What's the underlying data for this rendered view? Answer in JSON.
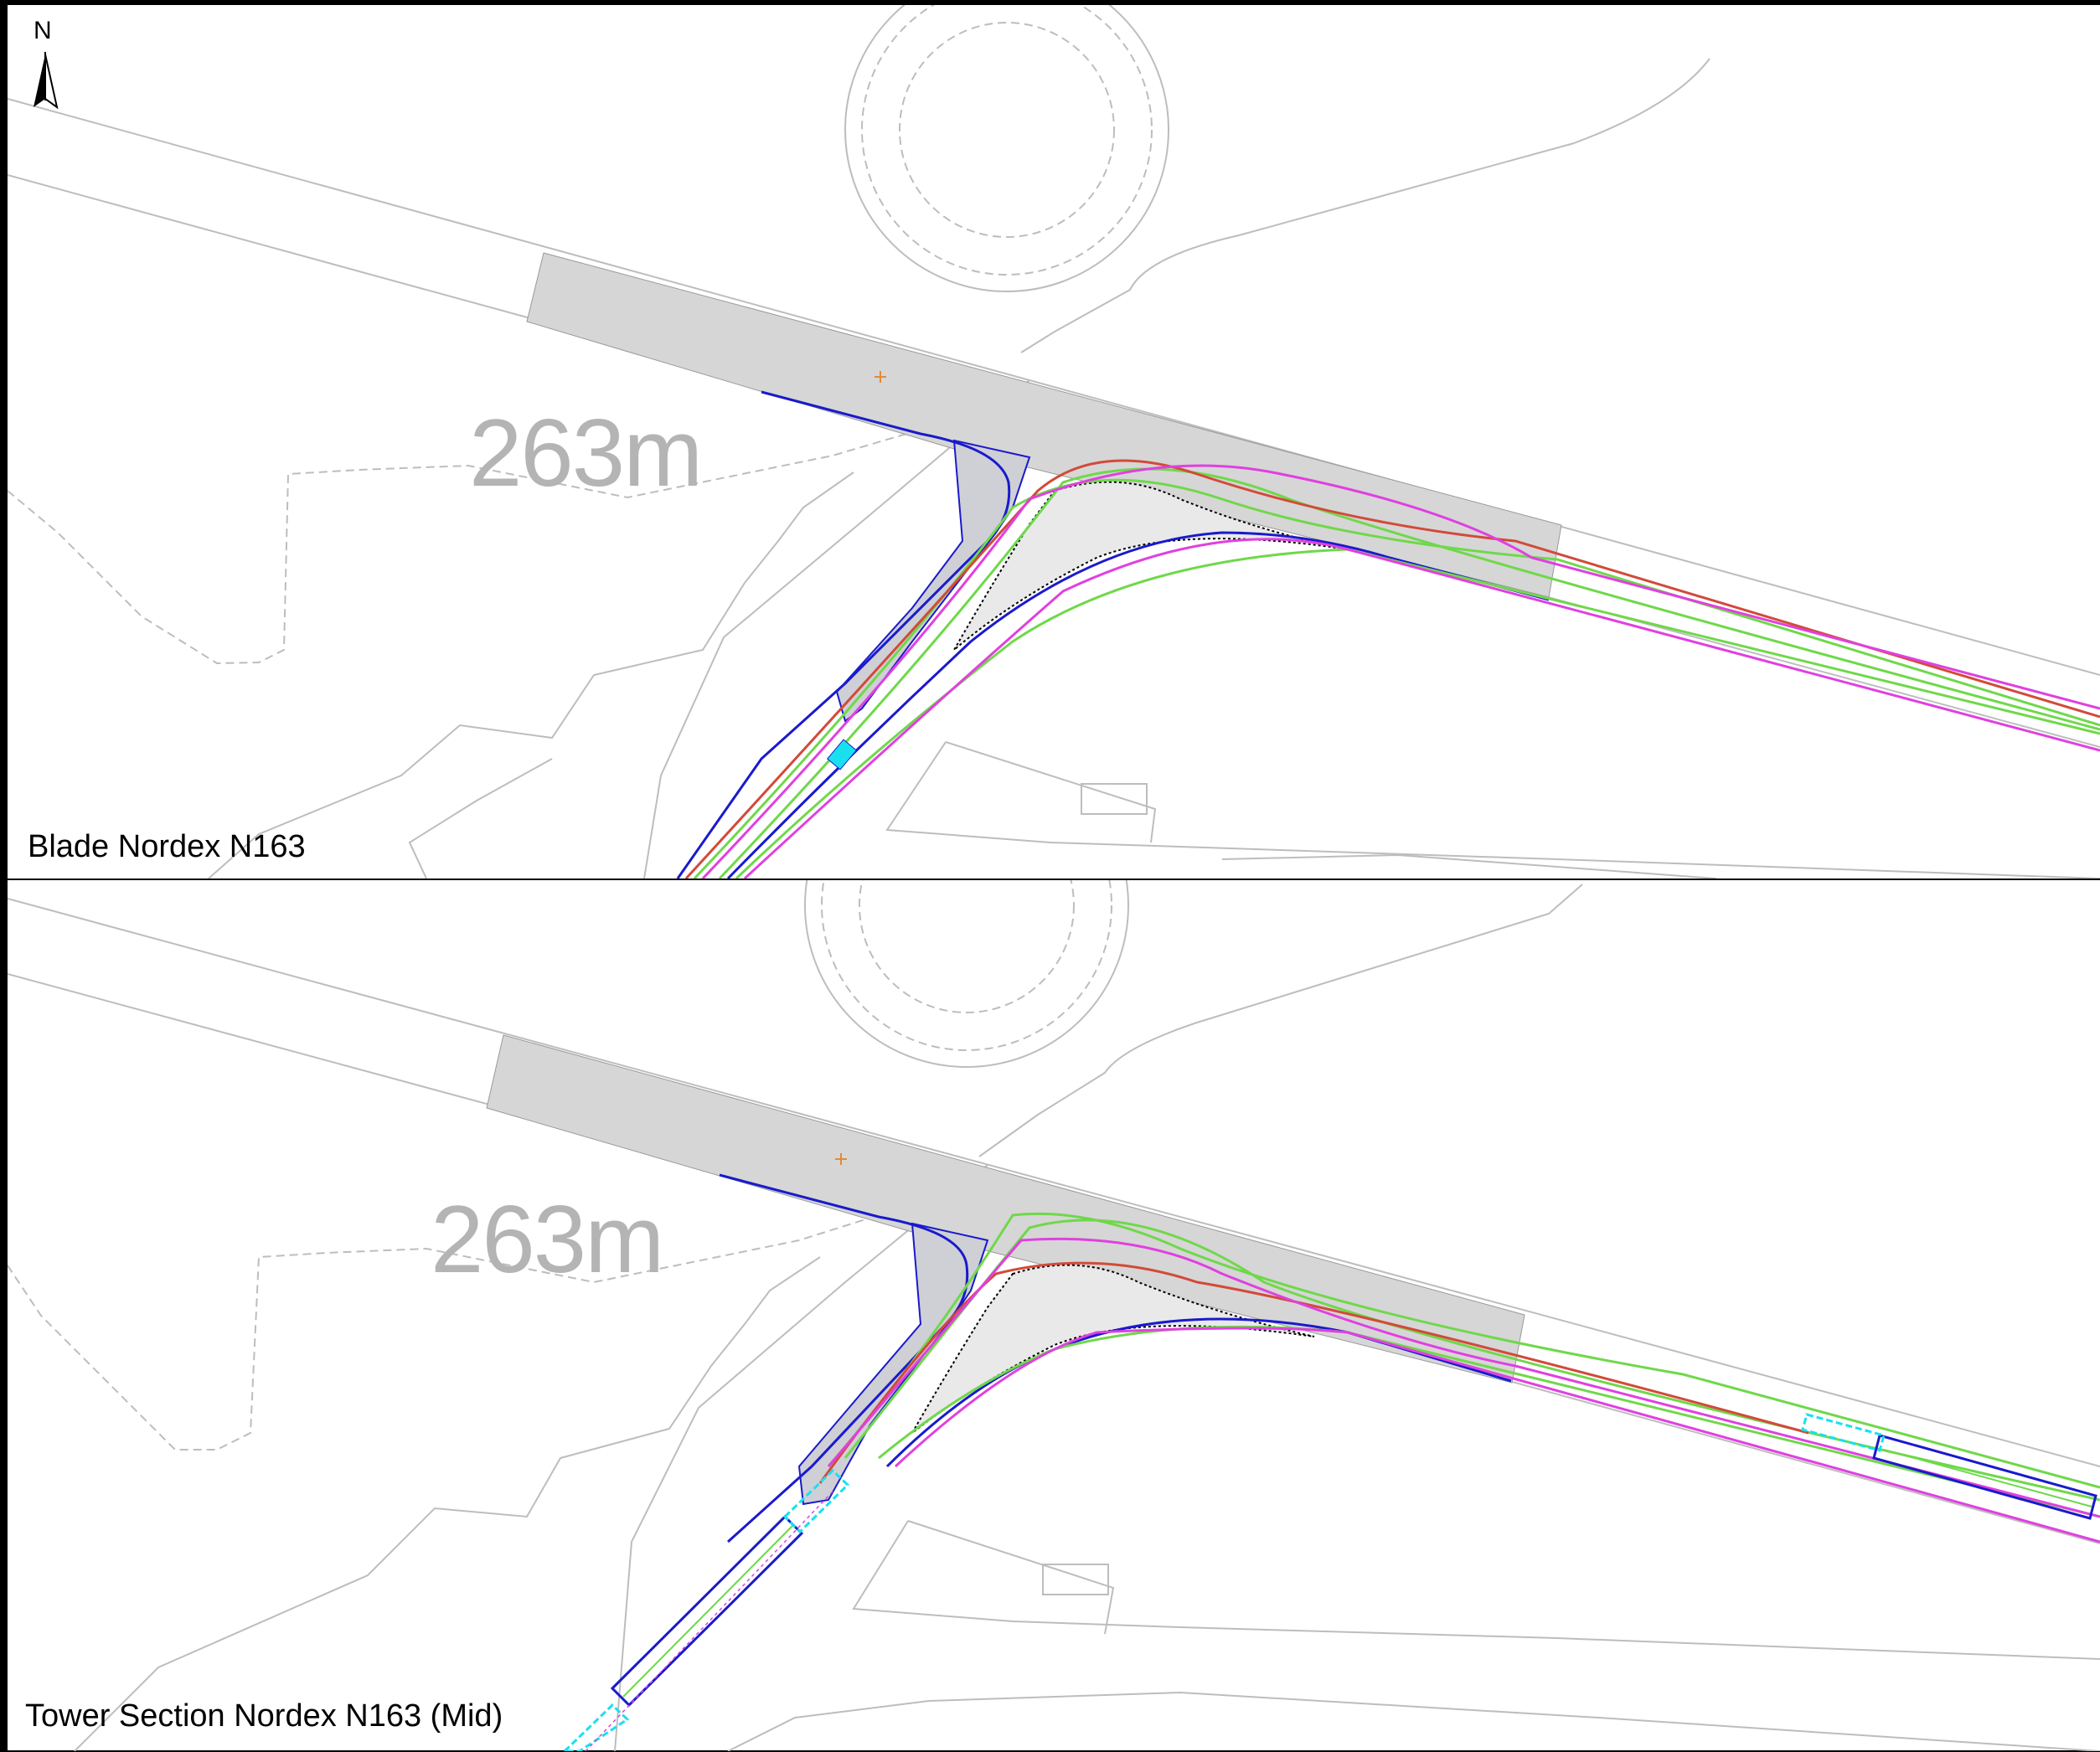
{
  "north_arrow": {
    "letter": "N"
  },
  "panels": [
    {
      "label": "Blade Nordex N163",
      "distance": "263m"
    },
    {
      "label": "Tower Section Nordex N163 (Mid)",
      "distance": "263m"
    }
  ],
  "colors": {
    "frame": "#000000",
    "outline": "#bdbdbd",
    "hardstanding": "#d6d6d6",
    "road_edge": "#1a1acc",
    "swept_green": "#6fd84a",
    "swept_magenta": "#e040e0",
    "swept_red": "#d24a3a",
    "load_cyan": "#19e0ef"
  }
}
